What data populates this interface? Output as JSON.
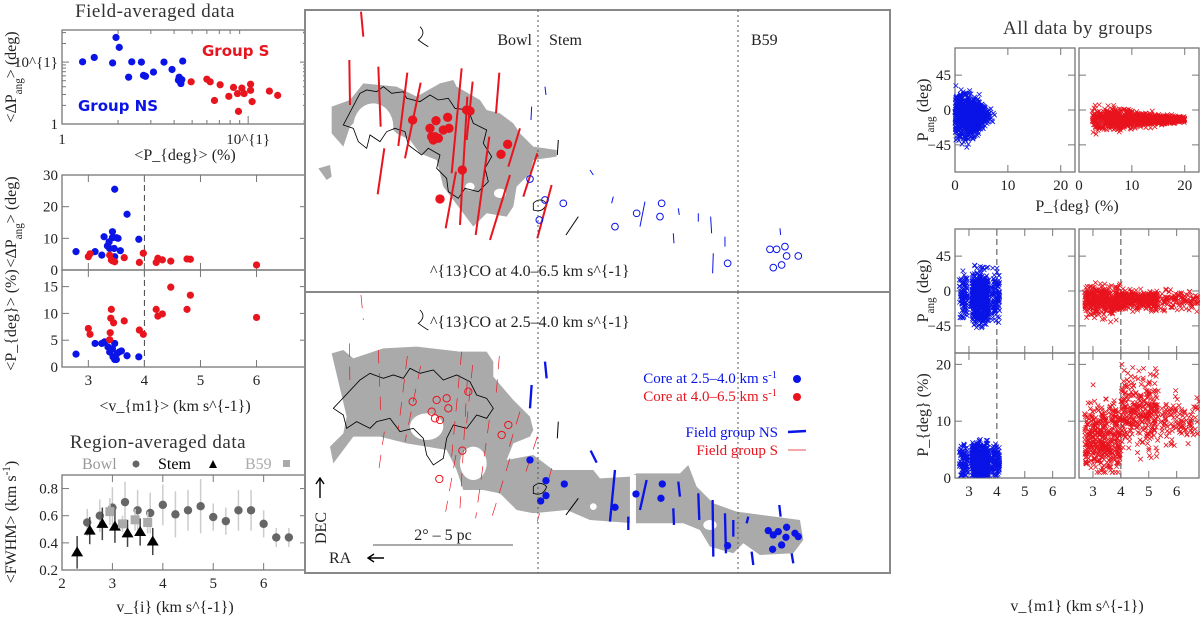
{
  "colors": {
    "group_ns": "#0a14e6",
    "group_s": "#e8141e",
    "bowl": "#666666",
    "stem": "#000000",
    "b59": "#aaaaaa",
    "cloud_fill": "#aaaaaa"
  },
  "left": {
    "title_field": "Field-averaged data",
    "title_region": "Region-averaged data",
    "group_s_label": "Group S",
    "group_ns_label": "Group NS",
    "legend_bowl": "Bowl",
    "legend_stem": "Stem",
    "legend_b59": "B59"
  },
  "map": {
    "region_bowl": "Bowl",
    "region_stem": "Stem",
    "region_b59": "B59",
    "top_caption": "^{13}CO at 4.0–6.5 km s^{-1}",
    "bottom_caption": "^{13}CO at 2.5–4.0 km s^{-1}",
    "legend_core_ns": "Core at 2.5–4.0 km s^{-1}",
    "legend_core_s": "Core at 4.0–6.5 km s^{-1}",
    "legend_field_ns": "Field group NS",
    "legend_field_s": "Field group S",
    "scale_bar": "2° – 5 pc",
    "dec_label": "DEC",
    "ra_label": "RA"
  },
  "right": {
    "title": "All data by groups"
  },
  "chart_data": [
    {
      "id": "A",
      "type": "scatter",
      "xscale": "log",
      "yscale": "log",
      "xlabel": "<P_{deg}> (%)",
      "ylabel": "<ΔP_{ang}> (deg)",
      "xlim": [
        1,
        20.7
      ],
      "ylim": [
        1,
        33
      ],
      "xticks": [
        {
          "v": 1,
          "label": "1"
        },
        {
          "v": 10,
          "label": "10^{1}"
        }
      ],
      "yticks": [
        {
          "v": 1,
          "label": "1"
        },
        {
          "v": 10,
          "label": "10^{1}"
        }
      ],
      "series": [
        {
          "name": "Group NS",
          "color": "#0a14e6",
          "points": [
            [
              1.29,
              10.1
            ],
            [
              1.49,
              11.9
            ],
            [
              1.87,
              9.7
            ],
            [
              1.95,
              25
            ],
            [
              2.03,
              17.3
            ],
            [
              2.28,
              5.7
            ],
            [
              2.37,
              10.1
            ],
            [
              2.67,
              10.0
            ],
            [
              2.74,
              6.1
            ],
            [
              2.81,
              5.9
            ],
            [
              3.1,
              6.9
            ],
            [
              3.53,
              10.0
            ],
            [
              3.9,
              7.6
            ],
            [
              4.26,
              5.7
            ],
            [
              4.31,
              4.9
            ],
            [
              4.35,
              4.5
            ],
            [
              4.45,
              10.4
            ],
            [
              4.22,
              5.1
            ],
            [
              4.4,
              5.2
            ]
          ]
        },
        {
          "name": "Group S",
          "color": "#e8141e",
          "points": [
            [
              4.94,
              4.8
            ],
            [
              6.0,
              5.3
            ],
            [
              6.25,
              4.8
            ],
            [
              6.59,
              2.4
            ],
            [
              7.07,
              4.3
            ],
            [
              7.87,
              2.8
            ],
            [
              8.34,
              3.9
            ],
            [
              8.76,
              3.1
            ],
            [
              9.25,
              3.8
            ],
            [
              8.87,
              1.6
            ],
            [
              9.51,
              3.1
            ],
            [
              10.3,
              4.4
            ],
            [
              10.3,
              3.5
            ],
            [
              10.5,
              2.3
            ],
            [
              13.0,
              3.4
            ],
            [
              14.4,
              2.9
            ]
          ]
        }
      ]
    },
    {
      "id": "B",
      "type": "scatter",
      "xlabel": "",
      "ylabel": "<ΔP_{ang}> (deg)",
      "xlim": [
        2.53,
        6.9
      ],
      "ylim": [
        0,
        30
      ],
      "vline": 4,
      "xticks": [
        {
          "v": 3,
          "label": ""
        },
        {
          "v": 4,
          "label": ""
        },
        {
          "v": 5,
          "label": ""
        },
        {
          "v": 6,
          "label": ""
        }
      ],
      "yticks": [
        {
          "v": 0,
          "label": "0"
        },
        {
          "v": 10,
          "label": "10"
        },
        {
          "v": 20,
          "label": "20"
        },
        {
          "v": 30,
          "label": "30"
        }
      ],
      "series": [
        {
          "name": "Group NS",
          "color": "#0a14e6",
          "points": [
            [
              2.78,
              5.8
            ],
            [
              3.12,
              5.8
            ],
            [
              3.24,
              4.7
            ],
            [
              3.28,
              10.5
            ],
            [
              3.34,
              7.6
            ],
            [
              3.38,
              6.8
            ],
            [
              3.43,
              12.1
            ],
            [
              3.43,
              10.2
            ],
            [
              3.47,
              4.2
            ],
            [
              3.47,
              25.5
            ],
            [
              3.5,
              10.2
            ],
            [
              3.53,
              10
            ],
            [
              3.46,
              6.8
            ],
            [
              3.57,
              6.1
            ],
            [
              3.69,
              17.6
            ],
            [
              3.9,
              9.7
            ],
            [
              3.37,
              8.9
            ]
          ]
        },
        {
          "name": "Group S",
          "color": "#e8141e",
          "points": [
            [
              3.0,
              4.2
            ],
            [
              3.03,
              5.1
            ],
            [
              3.38,
              4.7
            ],
            [
              3.41,
              3.2
            ],
            [
              3.47,
              2.6
            ],
            [
              3.43,
              2.9
            ],
            [
              3.64,
              3.9
            ],
            [
              3.91,
              2.4
            ],
            [
              3.98,
              5.3
            ],
            [
              4.21,
              2.4
            ],
            [
              4.24,
              3.7
            ],
            [
              4.32,
              3.2
            ],
            [
              4.47,
              2.8
            ],
            [
              4.76,
              3.5
            ],
            [
              4.82,
              3.4
            ],
            [
              6.0,
              1.6
            ]
          ]
        }
      ]
    },
    {
      "id": "C",
      "type": "scatter",
      "xlabel": "<v_{m1}> (km s^{-1})",
      "ylabel": "<P_{deg}> (%)",
      "xlim": [
        2.53,
        6.9
      ],
      "ylim": [
        0,
        18.1
      ],
      "vline": 4,
      "xticks": [
        {
          "v": 3,
          "label": "3"
        },
        {
          "v": 4,
          "label": "4"
        },
        {
          "v": 5,
          "label": "5"
        },
        {
          "v": 6,
          "label": "6"
        }
      ],
      "yticks": [
        {
          "v": 0,
          "label": "0"
        },
        {
          "v": 5,
          "label": "5"
        },
        {
          "v": 10,
          "label": "10"
        },
        {
          "v": 15,
          "label": "15"
        }
      ],
      "series": [
        {
          "name": "Group NS",
          "color": "#0a14e6",
          "points": [
            [
              2.78,
              2.4
            ],
            [
              3.12,
              4.4
            ],
            [
              3.24,
              4.4
            ],
            [
              3.29,
              4.7
            ],
            [
              3.35,
              3.75
            ],
            [
              3.38,
              2.8
            ],
            [
              3.43,
              3.4
            ],
            [
              3.44,
              1.9
            ],
            [
              3.47,
              1.4
            ],
            [
              3.5,
              1.4
            ],
            [
              3.47,
              4.4
            ],
            [
              3.55,
              2.8
            ],
            [
              3.59,
              3.0
            ],
            [
              3.69,
              2.1
            ],
            [
              3.9,
              1.9
            ],
            [
              3.51,
              2.5
            ]
          ]
        },
        {
          "name": "Group S",
          "color": "#e8141e",
          "points": [
            [
              3.0,
              7.2
            ],
            [
              3.03,
              6.1
            ],
            [
              3.38,
              5.1
            ],
            [
              3.39,
              6.4
            ],
            [
              3.41,
              10.75
            ],
            [
              3.4,
              9.1
            ],
            [
              3.45,
              8.25
            ],
            [
              3.64,
              8.6
            ],
            [
              3.91,
              6.9
            ],
            [
              3.98,
              6.1
            ],
            [
              4.21,
              10.75
            ],
            [
              4.24,
              9.5
            ],
            [
              4.32,
              9.9
            ],
            [
              4.47,
              14.9
            ],
            [
              4.76,
              10.75
            ],
            [
              4.82,
              13.4
            ],
            [
              6.0,
              9.25
            ]
          ]
        }
      ]
    },
    {
      "id": "D",
      "type": "scatter-errorbar",
      "xlabel": "v_{i} (km s^{-1})",
      "ylabel": "<FWHM> (km s^{-1})",
      "xlim": [
        2.0,
        6.86
      ],
      "ylim": [
        0.2,
        0.9
      ],
      "xticks": [
        {
          "v": 2,
          "label": "2"
        },
        {
          "v": 3,
          "label": "3"
        },
        {
          "v": 4,
          "label": "4"
        },
        {
          "v": 5,
          "label": "5"
        },
        {
          "v": 6,
          "label": "6"
        }
      ],
      "yticks": [
        {
          "v": 0.2,
          "label": "0.2"
        },
        {
          "v": 0.4,
          "label": "0.4"
        },
        {
          "v": 0.6,
          "label": "0.6"
        },
        {
          "v": 0.8,
          "label": "0.8"
        }
      ],
      "series": [
        {
          "name": "Bowl",
          "marker": "circle",
          "color": "#666666",
          "points": [
            [
              2.5,
              0.55,
              0.1
            ],
            [
              2.75,
              0.6,
              0.12
            ],
            [
              3.0,
              0.66,
              0.15
            ],
            [
              3.25,
              0.7,
              0.15
            ],
            [
              3.5,
              0.64,
              0.15
            ],
            [
              3.75,
              0.62,
              0.15
            ],
            [
              4.0,
              0.68,
              0.15
            ],
            [
              4.25,
              0.61,
              0.17
            ],
            [
              4.5,
              0.64,
              0.15
            ],
            [
              4.75,
              0.67,
              0.2
            ],
            [
              5.0,
              0.59,
              0.1
            ],
            [
              5.25,
              0.56,
              0.1
            ],
            [
              5.5,
              0.64,
              0.15
            ],
            [
              5.75,
              0.64,
              0.15
            ],
            [
              6.0,
              0.54,
              0.1
            ],
            [
              6.25,
              0.44,
              0.07
            ],
            [
              6.5,
              0.44,
              0.07
            ]
          ]
        },
        {
          "name": "Stem",
          "marker": "triangle",
          "color": "#000000",
          "points": [
            [
              2.3,
              0.33,
              0.12
            ],
            [
              2.55,
              0.49,
              0.1
            ],
            [
              2.8,
              0.54,
              0.12
            ],
            [
              3.05,
              0.52,
              0.12
            ],
            [
              3.3,
              0.47,
              0.1
            ],
            [
              3.55,
              0.48,
              0.1
            ],
            [
              3.8,
              0.41,
              0.1
            ]
          ]
        },
        {
          "name": "B59",
          "marker": "square",
          "color": "#aaaaaa",
          "points": [
            [
              2.95,
              0.63,
              0.1
            ],
            [
              3.2,
              0.54,
              0.06
            ],
            [
              3.45,
              0.57,
              0.08
            ],
            [
              3.7,
              0.55,
              0.08
            ]
          ]
        }
      ]
    },
    {
      "id": "E",
      "type": "scatter-cloud",
      "marker": "x",
      "xlabel": "P_{deg} (%)",
      "ylabel": "P_{ang} (deg)",
      "xlim": [
        0,
        22.7
      ],
      "ylim": [
        -80,
        80
      ],
      "xticks": [
        {
          "v": 0,
          "label": "0"
        },
        {
          "v": 10,
          "label": "10"
        },
        {
          "v": 20,
          "label": "20"
        }
      ],
      "yticks": [
        {
          "v": 45,
          "label": "45"
        },
        {
          "v": 0,
          "label": "0"
        },
        {
          "v": -45,
          "label": "−45"
        }
      ],
      "panels": [
        {
          "group": "NS",
          "color": "#0a14e6",
          "pdeg_range": [
            0,
            9
          ],
          "pang_range": [
            -60,
            70
          ]
        },
        {
          "group": "S",
          "color": "#e8141e",
          "pdeg_range": [
            2,
            20
          ],
          "pang_range": [
            -45,
            25
          ]
        }
      ]
    },
    {
      "id": "F",
      "type": "scatter-cloud",
      "marker": "x",
      "xlabel": "v_{m1} (km s^{-1})",
      "ylabel_top": "P_{ang} (deg)",
      "ylabel_bottom": "P_{deg} (%)",
      "xlim": [
        2.5,
        6.8
      ],
      "ylim_top": [
        -80,
        80
      ],
      "ylim_bottom": [
        0,
        22
      ],
      "vline": 4,
      "xticks": [
        {
          "v": 3,
          "label": "3"
        },
        {
          "v": 4,
          "label": "4"
        },
        {
          "v": 5,
          "label": "5"
        },
        {
          "v": 6,
          "label": "6"
        }
      ],
      "yticks_top": [
        {
          "v": 45,
          "label": "45"
        },
        {
          "v": 0,
          "label": "0"
        },
        {
          "v": -45,
          "label": "−45"
        }
      ],
      "yticks_bottom": [
        {
          "v": 0,
          "label": "0"
        },
        {
          "v": 10,
          "label": "10"
        },
        {
          "v": 20,
          "label": "20"
        }
      ],
      "panels": [
        {
          "group": "NS",
          "color": "#0a14e6",
          "vm1_range": [
            2.6,
            4.1
          ],
          "pang_range": [
            -55,
            65
          ],
          "pdeg_range": [
            0.5,
            9
          ]
        },
        {
          "group": "S",
          "color": "#e8141e",
          "vm1_range": [
            2.7,
            6.8
          ],
          "pang_range": [
            -45,
            25
          ],
          "pdeg_range": [
            1,
            20
          ]
        }
      ]
    }
  ]
}
